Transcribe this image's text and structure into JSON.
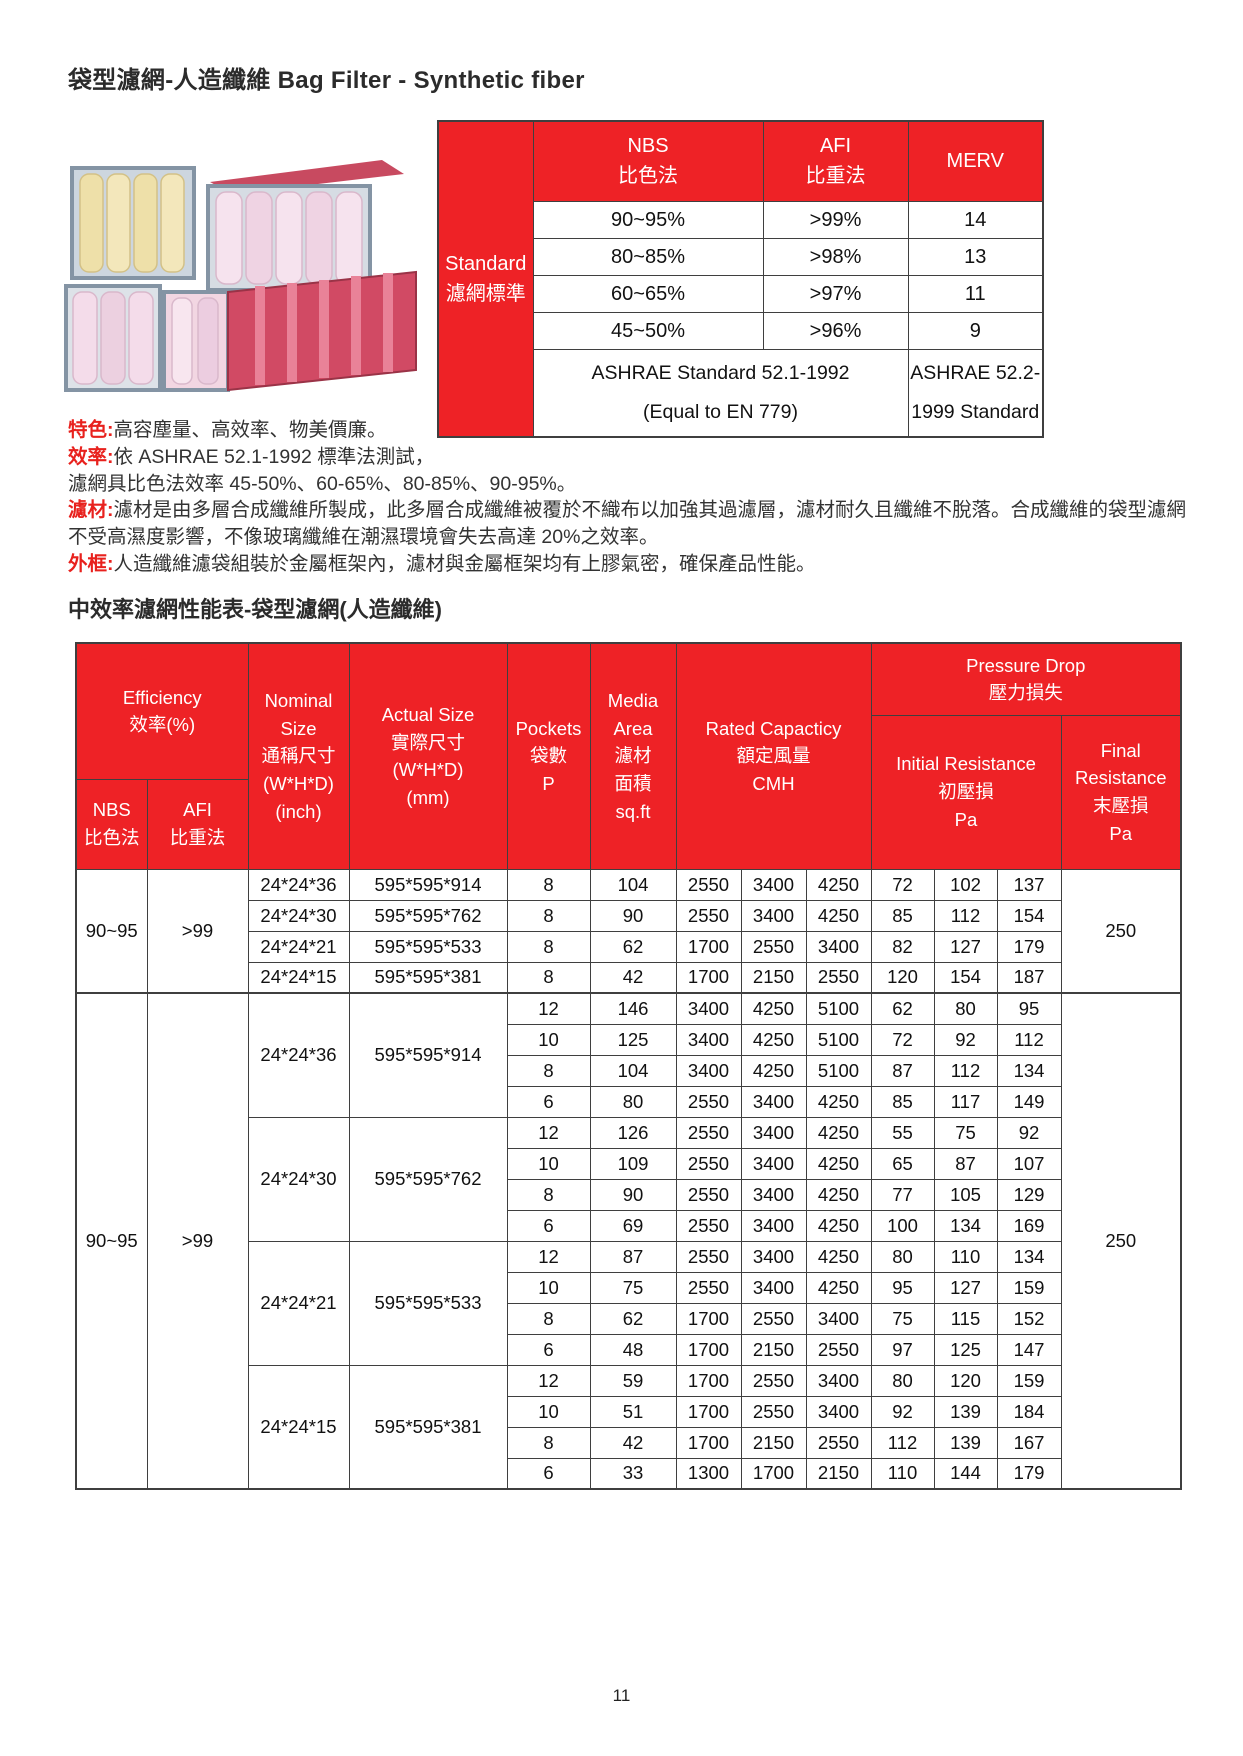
{
  "page": {
    "title": "袋型濾網-人造纖維  Bag Filter - Synthetic fiber",
    "section_title": "中效率濾網性能表-袋型濾網(人造纖維)",
    "page_number": "11",
    "accent_red": "#ee2226"
  },
  "description": {
    "lines": [
      {
        "label": "特色:",
        "text": "高容塵量、高效率、物美價廉。"
      },
      {
        "label": "效率:",
        "text": "依 ASHRAE 52.1-1992 標準法測試，"
      },
      {
        "label": "",
        "text": "濾網具比色法效率 45-50%、60-65%、80-85%、90-95%。"
      },
      {
        "label": "濾材:",
        "text": "濾材是由多層合成纖維所製成，此多層合成纖維被覆於不織布以加強其過濾層，濾材耐久且纖維不脫落。合成纖維的袋型濾網不受高濕度影響，不像玻璃纖維在潮濕環境會失去高達 20%之效率。"
      },
      {
        "label": "外框:",
        "text": "人造纖維濾袋組裝於金屬框架內，濾材與金屬框架均有上膠氣密，確保產品性能。"
      }
    ]
  },
  "standards_table": {
    "side_header": "Standard\n濾網標準",
    "columns": [
      "NBS\n比色法",
      "AFI\n比重法",
      "MERV"
    ],
    "rows": [
      [
        "90~95%",
        ">99%",
        "14"
      ],
      [
        "80~85%",
        ">98%",
        "13"
      ],
      [
        "60~65%",
        ">97%",
        "11"
      ],
      [
        "45~50%",
        ">96%",
        "9"
      ]
    ],
    "footer_left": "ASHRAE Standard 52.1-1992\n(Equal to EN 779)",
    "footer_right": "ASHRAE 52.2-\n1999 Standard"
  },
  "performance_table": {
    "header": {
      "efficiency": "Efficiency\n效率(%)",
      "nbs": "NBS\n比色法",
      "afi": "AFI\n比重法",
      "nominal": "Nominal\nSize\n通稱尺寸\n(W*H*D)\n(inch)",
      "actual": "Actual Size\n實際尺寸\n(W*H*D)\n(mm)",
      "pockets": "Pockets\n袋數\nP",
      "media": "Media\nArea\n濾材\n面積\nsq.ft",
      "rated": "Rated Capacticy\n額定風量\nCMH",
      "pressure": "Pressure Drop\n壓力損失",
      "initial": "Initial Resistance\n初壓損\nPa",
      "final": "Final\nResistance\n末壓損\nPa"
    },
    "groups": [
      {
        "nbs": "90~95",
        "afi": ">99",
        "final": "250",
        "blocks": [
          {
            "nominal": "24*24*36",
            "actual": "595*595*914",
            "rows": [
              [
                "8",
                "104",
                "2550",
                "3400",
                "4250",
                "72",
                "102",
                "137"
              ]
            ]
          },
          {
            "nominal": "24*24*30",
            "actual": "595*595*762",
            "rows": [
              [
                "8",
                "90",
                "2550",
                "3400",
                "4250",
                "85",
                "112",
                "154"
              ]
            ]
          },
          {
            "nominal": "24*24*21",
            "actual": "595*595*533",
            "rows": [
              [
                "8",
                "62",
                "1700",
                "2550",
                "3400",
                "82",
                "127",
                "179"
              ]
            ]
          },
          {
            "nominal": "24*24*15",
            "actual": "595*595*381",
            "rows": [
              [
                "8",
                "42",
                "1700",
                "2150",
                "2550",
                "120",
                "154",
                "187"
              ]
            ]
          }
        ]
      },
      {
        "nbs": "90~95",
        "afi": ">99",
        "final": "250",
        "blocks": [
          {
            "nominal": "24*24*36",
            "actual": "595*595*914",
            "rows": [
              [
                "12",
                "146",
                "3400",
                "4250",
                "5100",
                "62",
                "80",
                "95"
              ],
              [
                "10",
                "125",
                "3400",
                "4250",
                "5100",
                "72",
                "92",
                "112"
              ],
              [
                "8",
                "104",
                "3400",
                "4250",
                "5100",
                "87",
                "112",
                "134"
              ],
              [
                "6",
                "80",
                "2550",
                "3400",
                "4250",
                "85",
                "117",
                "149"
              ]
            ]
          },
          {
            "nominal": "24*24*30",
            "actual": "595*595*762",
            "rows": [
              [
                "12",
                "126",
                "2550",
                "3400",
                "4250",
                "55",
                "75",
                "92"
              ],
              [
                "10",
                "109",
                "2550",
                "3400",
                "4250",
                "65",
                "87",
                "107"
              ],
              [
                "8",
                "90",
                "2550",
                "3400",
                "4250",
                "77",
                "105",
                "129"
              ],
              [
                "6",
                "69",
                "2550",
                "3400",
                "4250",
                "100",
                "134",
                "169"
              ]
            ]
          },
          {
            "nominal": "24*24*21",
            "actual": "595*595*533",
            "rows": [
              [
                "12",
                "87",
                "2550",
                "3400",
                "4250",
                "80",
                "110",
                "134"
              ],
              [
                "10",
                "75",
                "2550",
                "3400",
                "4250",
                "95",
                "127",
                "159"
              ],
              [
                "8",
                "62",
                "1700",
                "2550",
                "3400",
                "75",
                "115",
                "152"
              ],
              [
                "6",
                "48",
                "1700",
                "2150",
                "2550",
                "97",
                "125",
                "147"
              ]
            ]
          },
          {
            "nominal": "24*24*15",
            "actual": "595*595*381",
            "rows": [
              [
                "12",
                "59",
                "1700",
                "2550",
                "3400",
                "80",
                "120",
                "159"
              ],
              [
                "10",
                "51",
                "1700",
                "2550",
                "3400",
                "92",
                "139",
                "184"
              ],
              [
                "8",
                "42",
                "1700",
                "2150",
                "2550",
                "112",
                "139",
                "167"
              ],
              [
                "6",
                "33",
                "1300",
                "1700",
                "2150",
                "110",
                "144",
                "179"
              ]
            ]
          }
        ]
      }
    ]
  }
}
